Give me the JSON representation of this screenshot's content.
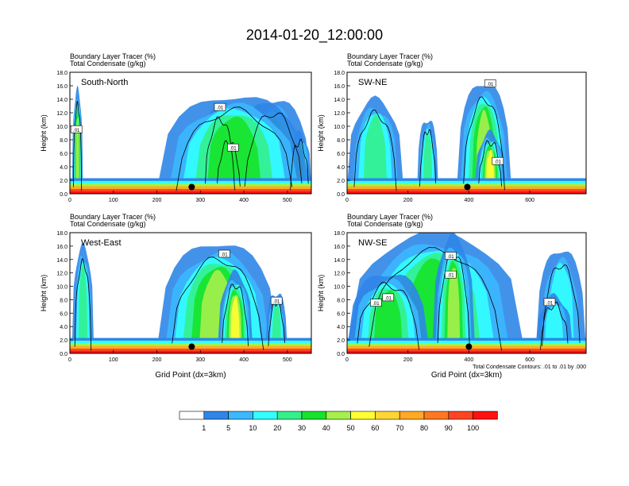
{
  "title": "2014-01-20_12:00:00",
  "colors": [
    "#ffffff",
    "#2f86e8",
    "#3bb8ff",
    "#33ffff",
    "#33f08d",
    "#16e32a",
    "#a6f04b",
    "#ffff33",
    "#ffd633",
    "#ffaa22",
    "#ff7722",
    "#ff4422",
    "#ff1111"
  ],
  "colorbar": {
    "labels": [
      "1",
      "5",
      "10",
      "20",
      "30",
      "40",
      "50",
      "60",
      "70",
      "80",
      "90",
      "100"
    ]
  },
  "footer_note": "Total Condensate Contours: .01 to .01 by .000",
  "chart_data": [
    {
      "type": "heatmap",
      "name": "South-North",
      "panel_title_1": "Boundary Layer Tracer   (%)",
      "panel_title_2": "Total Condensate   (g/kg)",
      "ylabel": "Height (km)",
      "xlabel": "",
      "ylim": [
        0,
        18
      ],
      "yticks": [
        "0.0",
        "2.0",
        "4.0",
        "6.0",
        "8.0",
        "10.0",
        "12.0",
        "14.0",
        "16.0",
        "18.0"
      ],
      "xlim": [
        0,
        555
      ],
      "xticks": [
        0,
        100,
        200,
        300,
        400,
        500
      ],
      "marker": {
        "x": 280,
        "y": 1.0
      },
      "contour_labels": [
        {
          "text": ".01",
          "x": 15,
          "y": 9.5
        },
        {
          "text": ".01",
          "x": 345,
          "y": 12.8
        },
        {
          "text": ".01",
          "x": 375,
          "y": 6.8
        }
      ],
      "plumes": [
        {
          "x0": 5,
          "x1": 30,
          "top": 15.5,
          "level": 6
        },
        {
          "x0": 300,
          "x1": 390,
          "top": 13.0,
          "level": 6
        },
        {
          "x0": 330,
          "x1": 400,
          "top": 9.0,
          "level": 7
        },
        {
          "x0": 380,
          "x1": 555,
          "top": 14.0,
          "level": 5
        },
        {
          "x0": 500,
          "x1": 555,
          "top": 9.0,
          "level": 5
        },
        {
          "x0": 200,
          "x1": 555,
          "top": 14.5,
          "level": 5
        }
      ]
    },
    {
      "type": "heatmap",
      "name": "SW-NE",
      "panel_title_1": "Boundary Layer Tracer   (%)",
      "panel_title_2": "Total Condensate   (g/kg)",
      "ylabel": "Height (km)",
      "xlabel": "",
      "ylim": [
        0,
        18
      ],
      "yticks": [
        "0.0",
        "2.0",
        "4.0",
        "6.0",
        "8.0",
        "10.0",
        "12.0",
        "14.0",
        "16.0",
        "18.0"
      ],
      "xlim": [
        0,
        785
      ],
      "xticks": [
        0,
        200,
        400,
        600
      ],
      "marker": {
        "x": 395,
        "y": 1.0
      },
      "contour_labels": [
        {
          "text": ".01",
          "x": 470,
          "y": 16.3
        },
        {
          "text": ".01",
          "x": 495,
          "y": 4.8
        }
      ],
      "plumes": [
        {
          "x0": 0,
          "x1": 185,
          "top": 14.0,
          "level": 4
        },
        {
          "x0": 360,
          "x1": 540,
          "top": 16.5,
          "level": 6
        },
        {
          "x0": 420,
          "x1": 520,
          "top": 9.0,
          "level": 7
        },
        {
          "x0": 230,
          "x1": 300,
          "top": 11.0,
          "level": 4
        }
      ]
    },
    {
      "type": "heatmap",
      "name": "West-East",
      "panel_title_1": "Boundary Layer Tracer   (%)",
      "panel_title_2": "Total Condensate   (g/kg)",
      "ylabel": "Height (km)",
      "xlabel": "Grid Point (dx=3km)",
      "ylim": [
        0,
        18
      ],
      "yticks": [
        "0.0",
        "2.0",
        "4.0",
        "6.0",
        "8.0",
        "10.0",
        "12.0",
        "14.0",
        "16.0",
        "18.0"
      ],
      "xlim": [
        0,
        555
      ],
      "xticks": [
        0,
        100,
        200,
        300,
        400,
        500
      ],
      "marker": {
        "x": 280,
        "y": 1.0
      },
      "contour_labels": [
        {
          "text": ".01",
          "x": 355,
          "y": 14.8
        },
        {
          "text": ".01",
          "x": 475,
          "y": 7.8
        }
      ],
      "plumes": [
        {
          "x0": 5,
          "x1": 55,
          "top": 16.0,
          "level": 4
        },
        {
          "x0": 200,
          "x1": 480,
          "top": 16.5,
          "level": 6
        },
        {
          "x0": 340,
          "x1": 420,
          "top": 12.0,
          "level": 7
        },
        {
          "x0": 450,
          "x1": 500,
          "top": 9.0,
          "level": 4
        }
      ]
    },
    {
      "type": "heatmap",
      "name": "NW-SE",
      "panel_title_1": "Boundary Layer Tracer   (%)",
      "panel_title_2": "Total Condensate   (g/kg)",
      "ylabel": "Height (km)",
      "xlabel": "Grid Point (dx=3km)",
      "ylim": [
        0,
        18
      ],
      "yticks": [
        "0.0",
        "2.0",
        "4.0",
        "6.0",
        "8.0",
        "10.0",
        "12.0",
        "14.0",
        "16.0",
        "18.0"
      ],
      "xlim": [
        0,
        785
      ],
      "xticks": [
        0,
        200,
        400,
        600
      ],
      "marker": {
        "x": 400,
        "y": 1.0
      },
      "contour_labels": [
        {
          "text": ".01",
          "x": 340,
          "y": 14.5
        },
        {
          "text": ".01",
          "x": 340,
          "y": 11.7
        },
        {
          "text": ".01",
          "x": 95,
          "y": 7.5
        },
        {
          "text": ".01",
          "x": 135,
          "y": 8.3
        },
        {
          "text": ".01",
          "x": 665,
          "y": 7.6
        }
      ],
      "plumes": [
        {
          "x0": 0,
          "x1": 580,
          "top": 18.0,
          "level": 5
        },
        {
          "x0": 0,
          "x1": 270,
          "top": 12.0,
          "level": 5
        },
        {
          "x0": 280,
          "x1": 420,
          "top": 17.5,
          "level": 6
        },
        {
          "x0": 620,
          "x1": 785,
          "top": 15.5,
          "level": 3
        },
        {
          "x0": 620,
          "x1": 740,
          "top": 8.5,
          "level": 3
        }
      ]
    }
  ]
}
